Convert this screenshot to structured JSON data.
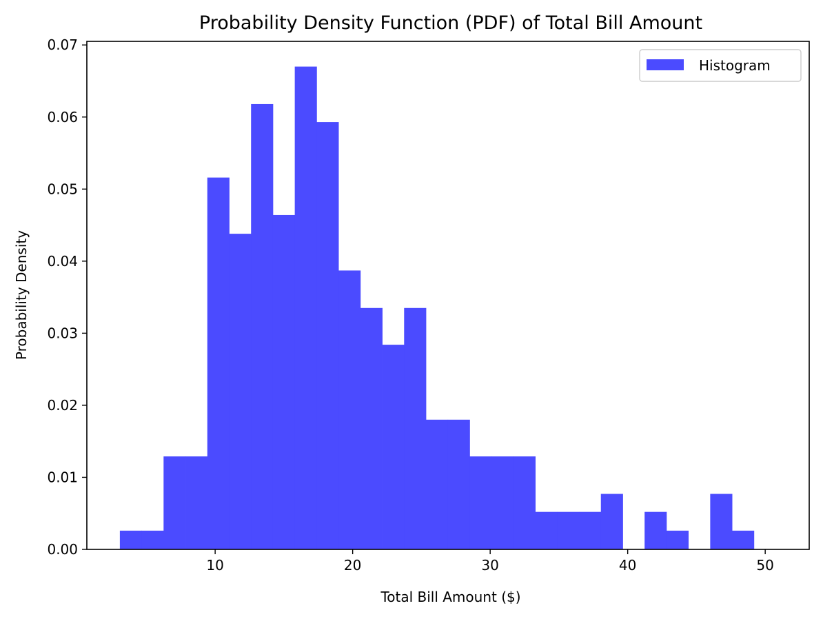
{
  "chart_data": {
    "type": "bar",
    "subtype": "histogram",
    "title": "Probability Density Function (PDF) of Total Bill Amount",
    "xlabel": "Total Bill Amount ($)",
    "ylabel": "Probability Density",
    "xlim": [
      0.67,
      53.2
    ],
    "ylim": [
      0,
      0.0705
    ],
    "xticks": [
      10,
      20,
      30,
      40,
      50
    ],
    "yticks": [
      0.0,
      0.01,
      0.02,
      0.03,
      0.04,
      0.05,
      0.06,
      0.07
    ],
    "ytick_labels": [
      "0.00",
      "0.01",
      "0.02",
      "0.03",
      "0.04",
      "0.05",
      "0.06",
      "0.07"
    ],
    "bin_edges": [
      3.07,
      4.66,
      6.25,
      7.84,
      9.43,
      11.02,
      12.61,
      14.2,
      15.79,
      17.38,
      18.97,
      20.56,
      22.15,
      23.74,
      25.33,
      26.92,
      28.51,
      30.1,
      31.69,
      33.28,
      34.87,
      36.46,
      38.05,
      39.64,
      41.23,
      42.82,
      44.41,
      46.0,
      47.59,
      49.18,
      50.77
    ],
    "values": [
      0.0026,
      0.0026,
      0.0129,
      0.0129,
      0.0516,
      0.0438,
      0.0618,
      0.0464,
      0.067,
      0.0593,
      0.0387,
      0.0335,
      0.0284,
      0.0335,
      0.018,
      0.018,
      0.0129,
      0.0129,
      0.0129,
      0.0052,
      0.0052,
      0.0052,
      0.0077,
      0.0,
      0.0052,
      0.0026,
      0.0,
      0.0077,
      0.0026,
      0.0
    ],
    "bar_color": "#4b4bff",
    "series": [
      {
        "name": "Histogram"
      }
    ],
    "legend": {
      "position": "top-right",
      "label": "Histogram"
    },
    "grid": false
  }
}
